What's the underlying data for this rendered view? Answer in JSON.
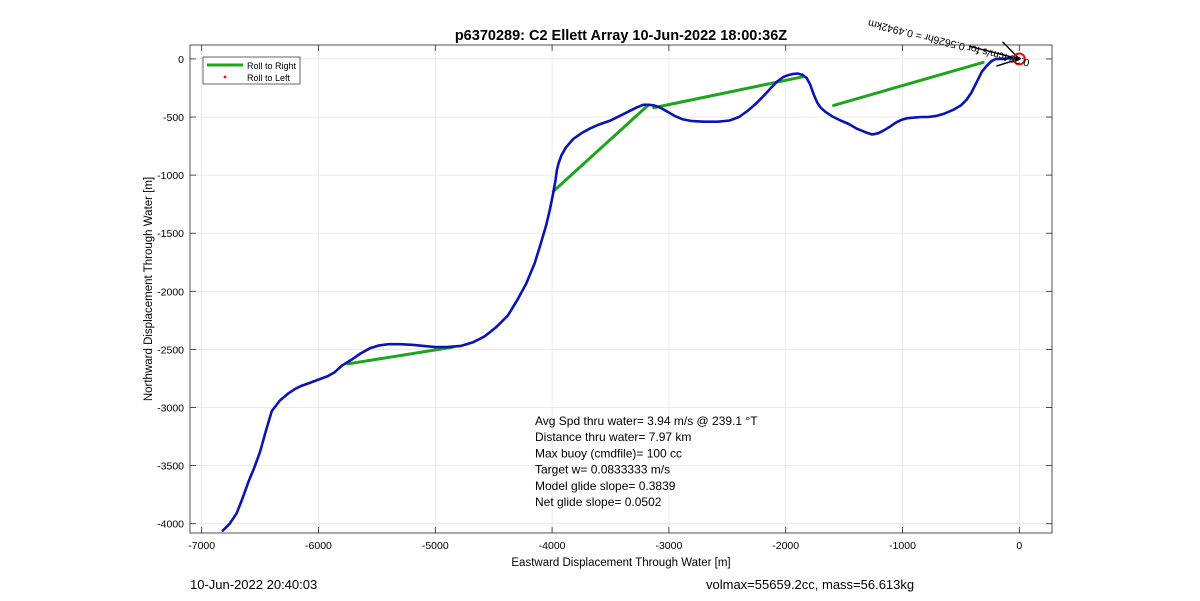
{
  "figure": {
    "footer_left": "10-Jun-2022 20:40:03",
    "footer_right": "volmax=55659.2cc, mass=56.613kg"
  },
  "chart_data": {
    "type": "line",
    "title": "p6370289: C2 Ellett Array 10-Jun-2022 18:00:36Z",
    "xlabel": "Eastward Displacement Through Water [m]",
    "ylabel": "Northward Displacement Through Water [m]",
    "xlim": [
      -7100,
      280
    ],
    "ylim": [
      -4080,
      120
    ],
    "xticks": [
      -7000,
      -6000,
      -5000,
      -4000,
      -3000,
      -2000,
      -1000,
      0
    ],
    "yticks": [
      0,
      -500,
      -1000,
      -1500,
      -2000,
      -2500,
      -3000,
      -3500,
      -4000
    ],
    "xtick_labels": [
      "-7000",
      "-6000",
      "-5000",
      "-4000",
      "-3000",
      "-2000",
      "-1000",
      "0"
    ],
    "ytick_labels": [
      "0",
      "-500",
      "-1000",
      "-1500",
      "-2000",
      "-2500",
      "-3000",
      "-3500",
      "-4000"
    ],
    "grid": true,
    "legend_position": "top-left",
    "legend": [
      "Roll to Right",
      "Roll to Left"
    ],
    "colors": {
      "track": "#0a14b4",
      "roll_right": "#1ea51e",
      "roll_left": "#e01010",
      "marker": "#e01010",
      "arrow": "#000000"
    },
    "series": [
      {
        "name": "track",
        "x": [
          -6820,
          -6760,
          -6700,
          -6650,
          -6600,
          -6550,
          -6500,
          -6450,
          -6400,
          -6330,
          -6260,
          -6200,
          -6150,
          -6080,
          -6000,
          -5920,
          -5860,
          -5800,
          -5720,
          -5640,
          -5560,
          -5480,
          -5400,
          -5300,
          -5200,
          -5100,
          -5000,
          -4900,
          -4780,
          -4680,
          -4580,
          -4480,
          -4380,
          -4300,
          -4220,
          -4150,
          -4100,
          -4050,
          -4020,
          -3990,
          -3970,
          -3960,
          -3945,
          -3920,
          -3880,
          -3820,
          -3750,
          -3680,
          -3600,
          -3500,
          -3420,
          -3350,
          -3280,
          -3220,
          -3170,
          -3130,
          -3080,
          -3020,
          -2950,
          -2880,
          -2800,
          -2700,
          -2580,
          -2480,
          -2400,
          -2330,
          -2260,
          -2200,
          -2140,
          -2080,
          -2020,
          -1980,
          -1940,
          -1900,
          -1860,
          -1820,
          -1790,
          -1770,
          -1750,
          -1730,
          -1700,
          -1660,
          -1600,
          -1530,
          -1460,
          -1390,
          -1320,
          -1260,
          -1210,
          -1160,
          -1110,
          -1060,
          -1010,
          -960,
          -900,
          -840,
          -780,
          -710,
          -640,
          -570,
          -500,
          -450,
          -410,
          -380,
          -350,
          -320,
          -280,
          -240,
          -200,
          -150,
          -100,
          -60,
          -20,
          0
        ],
        "y": [
          -4060,
          -4000,
          -3910,
          -3780,
          -3640,
          -3520,
          -3380,
          -3200,
          -3030,
          -2940,
          -2880,
          -2840,
          -2815,
          -2790,
          -2760,
          -2730,
          -2695,
          -2640,
          -2590,
          -2535,
          -2490,
          -2465,
          -2455,
          -2455,
          -2460,
          -2470,
          -2480,
          -2480,
          -2470,
          -2440,
          -2390,
          -2310,
          -2210,
          -2080,
          -1930,
          -1760,
          -1600,
          -1430,
          -1300,
          -1150,
          -1040,
          -960,
          -900,
          -830,
          -760,
          -690,
          -640,
          -600,
          -565,
          -530,
          -490,
          -455,
          -420,
          -395,
          -395,
          -400,
          -415,
          -450,
          -490,
          -520,
          -535,
          -540,
          -540,
          -530,
          -500,
          -450,
          -390,
          -330,
          -265,
          -200,
          -155,
          -140,
          -130,
          -125,
          -135,
          -165,
          -220,
          -280,
          -330,
          -375,
          -420,
          -455,
          -495,
          -530,
          -560,
          -600,
          -630,
          -650,
          -640,
          -615,
          -585,
          -550,
          -525,
          -510,
          -505,
          -500,
          -500,
          -490,
          -470,
          -440,
          -400,
          -350,
          -290,
          -230,
          -170,
          -110,
          -60,
          -20,
          0,
          0,
          5,
          10,
          5,
          0
        ]
      },
      {
        "name": "Roll to Right",
        "segments": [
          [
            [
              -5750,
              -2625
            ],
            [
              -4850,
              -2480
            ]
          ],
          [
            [
              -3990,
              -1140
            ],
            [
              -3180,
              -400
            ]
          ],
          [
            [
              -3130,
              -420
            ],
            [
              -1860,
              -155
            ]
          ],
          [
            [
              -1590,
              -400
            ],
            [
              -310,
              -30
            ]
          ]
        ]
      }
    ],
    "annotations": {
      "stats": [
        "Avg Spd thru water=  3.94 m/s @ 239.1 °T",
        "Distance thru water=  7.97 km",
        "Max buoy (cmdfile)= 100 cc",
        "Target w= 0.0833333 m/s",
        "Model glide slope= 0.3839",
        "Net glide slope= 0.0502"
      ],
      "current_label": "0.384cm/s for 0.5626hr = 0.4942km",
      "current_label_anchor": [
        -250,
        10
      ],
      "marker_at": [
        0,
        0
      ],
      "arrow_from": [
        0,
        0
      ],
      "arrow_to": [
        -430,
        110
      ]
    }
  }
}
